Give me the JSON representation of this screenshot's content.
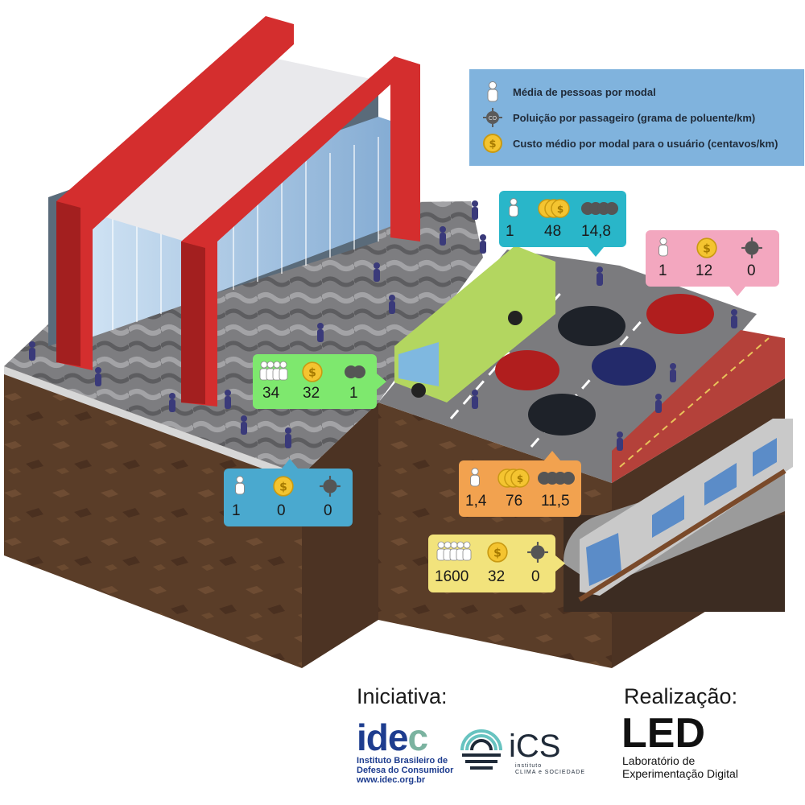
{
  "legend": {
    "items": [
      {
        "icon": "person-icon",
        "label": "Média de pessoas por modal"
      },
      {
        "icon": "pollution-icon",
        "label": "Poluição por passageiro (grama de poluente/km)"
      },
      {
        "icon": "coin-icon",
        "label": "Custo médio por modal para o usuário (centavos/km)"
      }
    ]
  },
  "cards": {
    "bus": {
      "color": "#29b6c9",
      "persons": "1",
      "cost": "48",
      "pollution": "14,8"
    },
    "motorcycle": {
      "color": "#f3a7bf",
      "persons": "1",
      "cost": "12",
      "pollution": "0"
    },
    "bus_lane": {
      "color": "#7ee86e",
      "persons": "34",
      "cost": "32",
      "pollution": "1"
    },
    "walking": {
      "color": "#4aa9cf",
      "persons": "1",
      "cost": "0",
      "pollution": "0"
    },
    "car": {
      "color": "#f2a24f",
      "persons": "1,4",
      "cost": "76",
      "pollution": "11,5"
    },
    "metro": {
      "color": "#f2e37c",
      "persons": "1600",
      "cost": "32",
      "pollution": "0"
    }
  },
  "footer": {
    "initiative_label": "Iniciativa:",
    "realization_label": "Realização:",
    "idec": {
      "wordmark_a": "ide",
      "wordmark_b": "c",
      "line1": "Instituto Brasileiro de",
      "line2": "Defesa do Consumidor",
      "line3": "www.idec.org.br"
    },
    "ics": {
      "wordmark": "iCS",
      "line1": "instituto",
      "line2": "CLIMA e SOCIEDADE"
    },
    "led": {
      "wordmark": "LED",
      "line1": "Laboratório de",
      "line2": "Experimentação Digital"
    }
  }
}
